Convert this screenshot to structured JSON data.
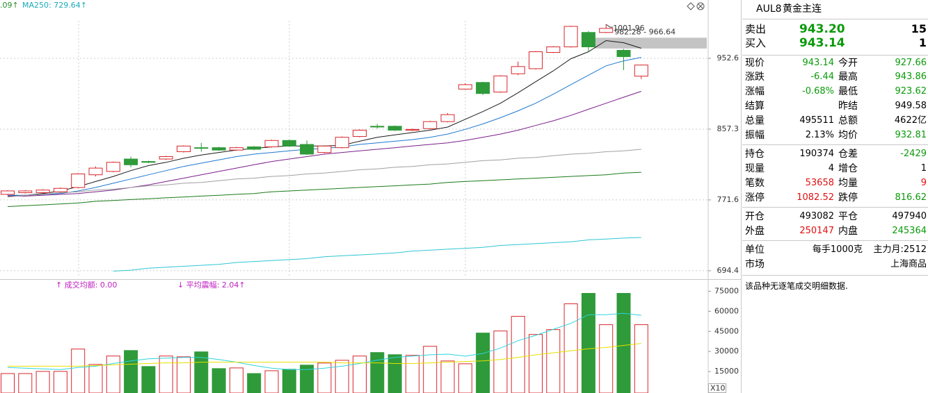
{
  "chart_data": [
    {
      "type": "candlestick",
      "log_scale": true,
      "grid": true,
      "ylim": [
        687.2,
        1039
      ],
      "yticks": [
        694.4,
        771.6,
        857.3,
        952.6
      ],
      "up_color": "#d9262b",
      "down_color": "#2f9a3a",
      "open": [
        778,
        780,
        780,
        781,
        786,
        801,
        805,
        820,
        817,
        820,
        829,
        834,
        834,
        831,
        835,
        835,
        843,
        838,
        828,
        834,
        848,
        861,
        861,
        856,
        858,
        867,
        910,
        919,
        906,
        931,
        938,
        961,
        969,
        990,
        990,
        964,
        927.66
      ],
      "high": [
        783,
        783,
        784,
        786,
        803,
        811,
        817,
        823,
        818,
        824,
        837,
        840,
        835,
        835,
        836,
        844,
        844,
        843,
        837,
        848,
        857,
        864,
        862,
        858,
        868,
        878,
        918,
        920,
        929,
        948,
        963,
        970,
        1000,
        992,
        1001.96,
        966,
        943.86
      ],
      "low": [
        777,
        779,
        779,
        780,
        785,
        799,
        804,
        810,
        815,
        819,
        828,
        829,
        830,
        830,
        831,
        834,
        835,
        825,
        827,
        833,
        847,
        858,
        855,
        855,
        857,
        866,
        909,
        902,
        905,
        929,
        937,
        960,
        968,
        961,
        989,
        936,
        923.62
      ],
      "close": [
        782,
        782,
        783,
        785,
        802,
        809,
        816,
        813,
        816,
        823,
        836,
        833.5,
        831,
        834,
        832,
        843,
        836,
        826,
        836,
        847,
        856,
        860,
        856,
        857,
        867,
        876,
        916,
        904,
        928,
        941,
        962,
        969,
        999,
        969,
        996,
        955,
        943.14
      ],
      "series": [
        {
          "color": "#1a1a1a",
          "values": [
            776,
            777,
            779,
            782,
            787,
            793,
            799,
            806,
            812,
            816,
            821,
            825,
            828,
            831,
            833,
            835,
            836,
            836,
            836,
            837,
            842,
            847,
            850,
            853,
            856,
            860,
            870,
            880,
            891,
            905,
            920,
            935,
            952,
            962,
            978,
            975,
            967
          ]
        },
        {
          "color": "#1e78d0",
          "values": [
            777,
            777,
            778,
            779,
            782,
            786,
            791,
            796,
            801,
            806,
            811,
            815,
            819,
            823,
            826,
            828,
            830,
            832,
            833,
            835,
            838,
            840,
            842,
            844,
            847,
            851,
            857,
            864,
            872,
            881,
            891,
            903,
            916,
            929,
            942,
            949,
            954
          ]
        },
        {
          "color": "#7a1f8a",
          "values": [
            776,
            776,
            777,
            778,
            779,
            781,
            783,
            786,
            789,
            793,
            797,
            801,
            805,
            809,
            813,
            817,
            820,
            823,
            826,
            828,
            830,
            832,
            834,
            836,
            838,
            840,
            843,
            847,
            851,
            856,
            862,
            868,
            875,
            883,
            891,
            899,
            907
          ]
        },
        {
          "color": "#a0a0a0",
          "values": [
            775,
            777,
            778,
            780,
            781,
            783,
            784,
            786,
            788,
            789,
            791,
            792,
            794,
            796,
            797,
            799,
            800,
            802,
            803,
            805,
            807,
            808,
            810,
            811,
            813,
            814,
            816,
            818,
            819,
            821,
            822,
            824,
            826,
            827,
            829,
            830,
            832
          ]
        },
        {
          "color": "#1a7a1a",
          "values": [
            764,
            765,
            766,
            767,
            768,
            770,
            771,
            772,
            773,
            774,
            775,
            776,
            777,
            778,
            779,
            781,
            782,
            783,
            784,
            785,
            786,
            787,
            788,
            789,
            790,
            792,
            793,
            794,
            795,
            796,
            797,
            798,
            799,
            800,
            801,
            803,
            804
          ]
        },
        {
          "color": "#2ec6d4",
          "values": [
            null,
            null,
            null,
            null,
            null,
            null,
            694,
            695,
            697,
            698,
            699,
            700,
            701,
            703,
            704,
            705,
            706,
            707,
            709,
            710,
            711,
            712,
            713,
            715,
            716,
            717,
            718,
            719,
            721,
            722,
            723,
            724,
            725,
            727,
            728,
            729,
            729.64
          ]
        }
      ],
      "legend_texts": [
        ".09↑",
        "MA250: 729.64↑"
      ],
      "high_label": "1001.96",
      "band": [
        982.28,
        966.64
      ],
      "band_label": "982.28 - 966.64"
    },
    {
      "type": "bar",
      "ylim": [
        0,
        83000
      ],
      "yticks": [
        15000,
        30000,
        45000,
        60000,
        75000
      ],
      "values": [
        13500,
        13500,
        15100,
        15100,
        31800,
        20300,
        26600,
        30700,
        18750,
        26600,
        26000,
        29700,
        17200,
        17700,
        13500,
        15600,
        16700,
        19800,
        21350,
        23400,
        26600,
        29200,
        27600,
        27100,
        33850,
        22900,
        20800,
        43750,
        45300,
        56250,
        42700,
        46350,
        65600,
        73400,
        50000,
        73400,
        50000
      ],
      "series": [
        {
          "color": "#2ed3de",
          "values": [
            18000,
            17500,
            17000,
            16500,
            18000,
            19000,
            21000,
            23000,
            24500,
            25000,
            25500,
            25500,
            24000,
            22000,
            19500,
            17500,
            16500,
            16500,
            17500,
            19000,
            21000,
            23500,
            25500,
            26500,
            27500,
            28000,
            26500,
            28500,
            32500,
            38000,
            42000,
            46500,
            51000,
            57500,
            57500,
            58500,
            57000
          ]
        },
        {
          "color": "#e6df00",
          "values": [
            19000,
            19000,
            19000,
            19000,
            19000,
            19500,
            20000,
            20500,
            21000,
            21500,
            21500,
            22000,
            22000,
            22000,
            22000,
            22000,
            22000,
            22000,
            22000,
            21500,
            21500,
            21500,
            21000,
            21000,
            21500,
            22000,
            22500,
            23000,
            24000,
            25500,
            27500,
            29000,
            30500,
            32000,
            33000,
            34500,
            36000
          ]
        }
      ],
      "indicators": [
        "↑ 成交均额: 0.00",
        "↓ 平均震幅: 2.04↑"
      ],
      "scale_label": "X10"
    }
  ],
  "panel": {
    "code": "AUL8",
    "name": "黄金主连",
    "book": [
      {
        "label": "卖出",
        "price": "943.20",
        "qty": "15"
      },
      {
        "label": "买入",
        "price": "943.14",
        "qty": "1"
      }
    ],
    "stats": [
      {
        "l1": "现价",
        "v1": "943.14",
        "l2": "今开",
        "v2": "927.66"
      },
      {
        "l1": "涨跌",
        "v1": "-6.44",
        "l2": "最高",
        "v2": "943.86"
      },
      {
        "l1": "涨幅",
        "v1": "-0.68%",
        "l2": "最低",
        "v2": "923.62"
      },
      {
        "l1": "结算",
        "l2": "昨结",
        "v2": "949.58"
      },
      {
        "l1": "总量",
        "v1": "495511",
        "l2": "总额",
        "v2": "4622亿"
      },
      {
        "l1": "振幅",
        "v1": "2.13%",
        "l2": "均价",
        "v2": "932.81"
      },
      {
        "l1": "持仓",
        "v1": "190374",
        "l2": "仓差",
        "v2": "-2429"
      },
      {
        "l1": "现量",
        "v1": "4",
        "l2": "增仓",
        "v2": "1"
      },
      {
        "l1": "笔数",
        "v1": "53658",
        "l2": "均量",
        "v2": "9"
      },
      {
        "l1": "涨停",
        "v1": "1082.52",
        "l2": "跌停",
        "v2": "816.62"
      },
      {
        "l1": "开仓",
        "v1": "493082",
        "l2": "平仓",
        "v2": "497940"
      },
      {
        "l1": "外盘",
        "v1": "250147",
        "l2": "内盘",
        "v2": "245364"
      },
      {
        "l1": "单位",
        "v1": "每手1000克",
        "v2": "主力月:2512"
      },
      {
        "l1": "市场",
        "v2": "上海商品"
      }
    ],
    "note": "该品种无逐笔成交明细数据."
  }
}
